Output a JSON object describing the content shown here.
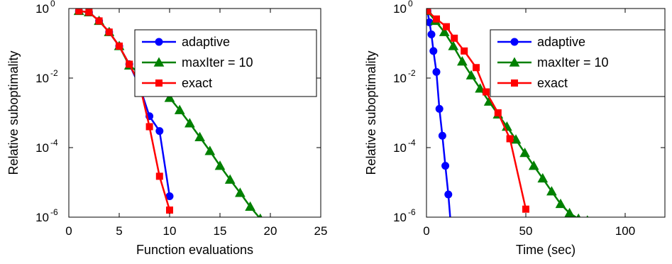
{
  "chart_data": [
    {
      "type": "line",
      "title": "",
      "xlabel": "Function evaluations",
      "ylabel": "Relative suboptimality",
      "xlim": [
        0,
        25
      ],
      "ylim": [
        1e-06,
        1
      ],
      "yscale": "log",
      "xticks": [
        "0",
        "5",
        "10",
        "15",
        "20",
        "25"
      ],
      "yticks": [
        {
          "base": "10",
          "exp": "-6"
        },
        {
          "base": "10",
          "exp": "-4"
        },
        {
          "base": "10",
          "exp": "-2"
        },
        {
          "base": "10",
          "exp": "0"
        }
      ],
      "grid": false,
      "legend": "top-right",
      "series": [
        {
          "name": "adaptive",
          "color": "#0000ff",
          "marker": "circle",
          "x": [
            1,
            2,
            3,
            4,
            5,
            6,
            7,
            8,
            9,
            10
          ],
          "y": [
            0.85,
            0.78,
            0.44,
            0.21,
            0.083,
            0.025,
            0.006,
            0.0008,
            0.0003,
            4e-06
          ]
        },
        {
          "name": "maxIter = 10",
          "color": "#008000",
          "marker": "triangle",
          "x": [
            1,
            2,
            3,
            4,
            5,
            6,
            7,
            8,
            9,
            10,
            11,
            12,
            13,
            14,
            15,
            16,
            17,
            18,
            19
          ],
          "y": [
            0.85,
            0.78,
            0.44,
            0.21,
            0.083,
            0.023,
            0.014,
            0.008,
            0.005,
            0.0027,
            0.0012,
            0.0005,
            0.0002,
            8e-05,
            3e-05,
            1.2e-05,
            5e-06,
            2e-06,
            9e-07
          ]
        },
        {
          "name": "exact",
          "color": "#ff0000",
          "marker": "square",
          "x": [
            1,
            2,
            3,
            4,
            5,
            6,
            7,
            8,
            9,
            10
          ],
          "y": [
            0.85,
            0.78,
            0.44,
            0.21,
            0.083,
            0.025,
            0.007,
            0.0004,
            1.5e-05,
            1.6e-06
          ]
        }
      ]
    },
    {
      "type": "line",
      "title": "",
      "xlabel": "Time (sec)",
      "ylabel": "Relative suboptimality",
      "xlim": [
        0,
        120
      ],
      "ylim": [
        1e-06,
        1
      ],
      "yscale": "log",
      "xticks": [
        "0",
        "50",
        "100"
      ],
      "yticks": [
        {
          "base": "10",
          "exp": "-6"
        },
        {
          "base": "10",
          "exp": "-4"
        },
        {
          "base": "10",
          "exp": "-2"
        },
        {
          "base": "10",
          "exp": "0"
        }
      ],
      "grid": false,
      "legend": "top-right",
      "series": [
        {
          "name": "adaptive",
          "color": "#0000ff",
          "marker": "circle",
          "x": [
            0.5,
            1.5,
            2.5,
            3.5,
            5,
            6.5,
            8,
            9.5,
            11,
            12.5
          ],
          "y": [
            0.85,
            0.4,
            0.18,
            0.06,
            0.015,
            0.0013,
            0.00022,
            3e-05,
            4.5e-06,
            4e-07
          ]
        },
        {
          "name": "maxIter = 10",
          "color": "#008000",
          "marker": "triangle",
          "x": [
            0.5,
            4.5,
            9,
            13.5,
            18,
            22.5,
            27,
            31.5,
            36,
            40.5,
            45,
            49.5,
            54,
            58.5,
            63,
            67.5,
            72,
            76.5,
            81
          ],
          "y": [
            0.85,
            0.44,
            0.21,
            0.083,
            0.03,
            0.012,
            0.005,
            0.0021,
            0.0009,
            0.0004,
            0.00017,
            7e-05,
            3e-05,
            1.3e-05,
            5.5e-06,
            2.4e-06,
            1.3e-06,
            9e-07,
            8e-07
          ]
        },
        {
          "name": "exact",
          "color": "#ff0000",
          "marker": "square",
          "x": [
            0.5,
            5,
            10,
            14,
            19,
            25,
            30,
            36,
            42,
            50
          ],
          "y": [
            0.85,
            0.5,
            0.3,
            0.14,
            0.06,
            0.02,
            0.004,
            0.001,
            0.00018,
            1.7e-06
          ]
        }
      ]
    }
  ]
}
